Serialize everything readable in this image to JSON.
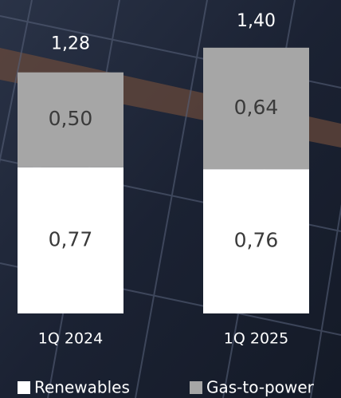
{
  "chart_data": {
    "type": "stacked-bar",
    "categories": [
      "1Q 2024",
      "1Q 2025"
    ],
    "series": [
      {
        "name": "Renewables",
        "color": "#ffffff",
        "values": [
          0.77,
          0.76
        ],
        "value_labels": [
          "0,77",
          "0,76"
        ]
      },
      {
        "name": "Gas-to-power",
        "color": "#a6a6a6",
        "values": [
          0.5,
          0.64
        ],
        "value_labels": [
          "0,50",
          "0,64"
        ]
      }
    ],
    "totals": [
      1.28,
      1.4
    ],
    "total_labels": [
      "1,28",
      "1,40"
    ]
  }
}
